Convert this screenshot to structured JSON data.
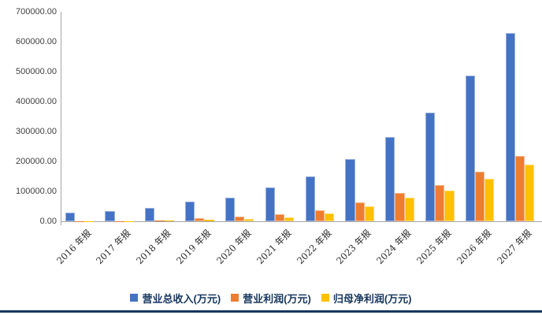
{
  "chart_data": {
    "type": "bar",
    "title": "",
    "xlabel": "",
    "ylabel": "",
    "categories": [
      "2016 年报",
      "2017 年报",
      "2018 年报",
      "2019 年报",
      "2020 年报",
      "2021 年报",
      "2022 年报",
      "2023 年报",
      "2024 年报",
      "2025 年报",
      "2026 年报",
      "2027 年报"
    ],
    "series": [
      {
        "name": "营业总收入(万元)",
        "color": "#4472C4",
        "values": [
          29500,
          34500,
          45500,
          68000,
          79000,
          113500,
          151500,
          209000,
          281500,
          364500,
          487000,
          629500
        ]
      },
      {
        "name": "营业利润(万元)",
        "color": "#ED7D31",
        "values": [
          1000,
          1500,
          4000,
          13000,
          17500,
          24500,
          39000,
          65500,
          96000,
          121500,
          167500,
          220000
        ]
      },
      {
        "name": "归母净利润(万元)",
        "color": "#FFC000",
        "values": [
          800,
          1200,
          3200,
          6500,
          10500,
          15500,
          26500,
          52500,
          81000,
          104500,
          142500,
          190500
        ]
      }
    ],
    "ylim": [
      0,
      700000
    ],
    "y_tick_interval": 100000,
    "y_tick_labels_top_to_bottom": [
      "700000.00",
      "600000.00",
      "500000.00",
      "400000.00",
      "300000.00",
      "200000.00",
      "100000.00",
      "0.00"
    ],
    "grid": false,
    "legend_position": "bottom",
    "x_labels_rotation_deg": 45
  },
  "colors": {
    "background": "#FFFFFF",
    "axis_line": "#A6A6A6",
    "tick_text": "#404040",
    "legend_text": "#17375E",
    "bottom_border": "#17375E"
  }
}
